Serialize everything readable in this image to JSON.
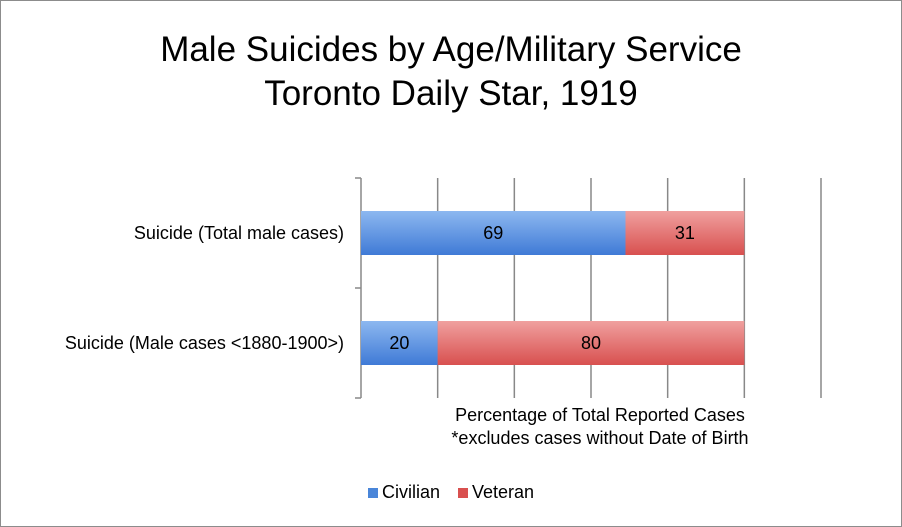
{
  "chart_data": {
    "type": "bar",
    "orientation": "horizontal",
    "stacked": true,
    "title": [
      "Male Suicides by Age/Military Service",
      "Toronto Daily Star, 1919"
    ],
    "categories": [
      "Suicide (Total male cases)",
      "Suicide (Male cases <1880-1900>)"
    ],
    "series": [
      {
        "name": "Civilian",
        "values": [
          69,
          20
        ],
        "color": "#4a86d9"
      },
      {
        "name": "Veteran",
        "values": [
          31,
          80
        ],
        "color": "#d9504f"
      }
    ],
    "xlim": [
      0,
      120
    ],
    "grid_step": 20,
    "grid": true,
    "xlabel": [
      "Percentage of Total Reported Cases",
      "*excludes cases without Date of Birth"
    ],
    "legend_position": "bottom"
  }
}
